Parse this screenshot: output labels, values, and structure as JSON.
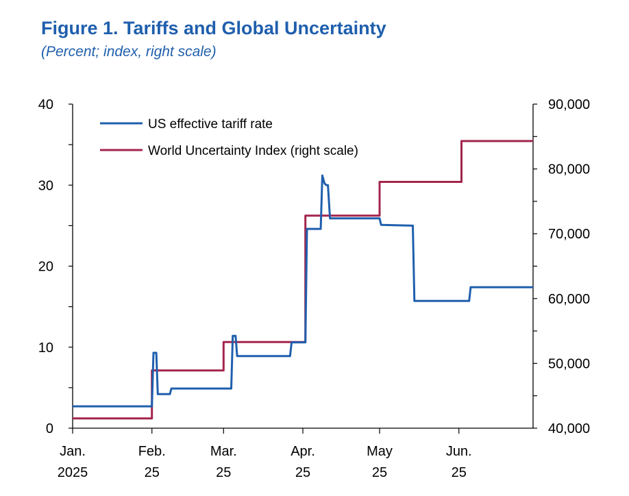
{
  "title": "Figure 1.  Tariffs and Global Uncertainty",
  "subtitle": "(Percent; index, right scale)",
  "chart_data": {
    "type": "line",
    "title": "Figure 1.  Tariffs and Global Uncertainty",
    "subtitle": "(Percent; index, right scale)",
    "x_unit": "days since Jan. 1, 2025",
    "xlim": [
      0,
      180
    ],
    "x_ticks": [
      {
        "x": 0,
        "line1": "Jan.",
        "line2": "2025"
      },
      {
        "x": 31,
        "line1": "Feb.",
        "line2": "25"
      },
      {
        "x": 59,
        "line1": "Mar.",
        "line2": "25"
      },
      {
        "x": 90,
        "line1": "Apr.",
        "line2": "25"
      },
      {
        "x": 120,
        "line1": "May",
        "line2": "25"
      },
      {
        "x": 151,
        "line1": "Jun.",
        "line2": "25"
      }
    ],
    "y_left": {
      "min": 0,
      "max": 40,
      "major": [
        0,
        10,
        20,
        30,
        40
      ],
      "minor_step": 5
    },
    "y_right": {
      "min": 40000,
      "max": 90000,
      "major": [
        40000,
        50000,
        60000,
        70000,
        80000,
        90000
      ],
      "major_labels": [
        "40,000",
        "50,000",
        "60,000",
        "70,000",
        "80,000",
        "90,000"
      ],
      "minor_step": 5000
    },
    "legend": "top-left",
    "series": [
      {
        "name": "US effective tariff rate",
        "axis": "left",
        "color": "#1f5fad",
        "x": [
          0,
          31,
          31.6,
          32.7,
          33.3,
          38,
          38.6,
          62,
          62.6,
          63.7,
          64.3,
          85,
          85.6,
          88,
          91,
          91.6,
          97,
          97.6,
          98.5,
          99.2,
          99.8,
          100.6,
          101.2,
          120,
          120.6,
          133,
          133.6,
          155,
          155.6,
          180
        ],
        "y": [
          2.7,
          2.7,
          9.3,
          9.3,
          4.2,
          4.2,
          4.9,
          4.9,
          11.4,
          11.4,
          8.9,
          8.9,
          10.6,
          10.6,
          10.6,
          24.6,
          24.6,
          31.2,
          30.2,
          30.0,
          30.0,
          25.9,
          25.9,
          25.9,
          25.1,
          25.0,
          15.7,
          15.7,
          17.4,
          17.4
        ]
      },
      {
        "name": "World Uncertainty Index (right scale)",
        "axis": "right",
        "color": "#a3254c",
        "x": [
          0,
          31,
          31,
          59,
          59,
          91,
          91,
          120,
          120,
          152,
          152,
          180
        ],
        "y": [
          41500,
          41500,
          48900,
          48900,
          53300,
          53300,
          72800,
          72800,
          78000,
          78000,
          84300,
          84300
        ]
      }
    ]
  }
}
